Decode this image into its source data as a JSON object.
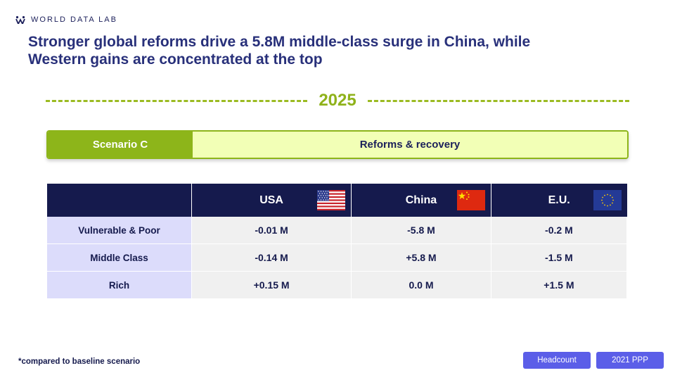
{
  "brand": {
    "name": "WORLD DATA LAB",
    "logo_icon": "wdl-logo-icon"
  },
  "headline": "Stronger global reforms drive a 5.8M middle-class surge in China, while Western gains are concentrated at the top",
  "year": "2025",
  "scenario": {
    "label": "Scenario C",
    "description": "Reforms & recovery"
  },
  "table": {
    "columns": [
      {
        "name": "USA",
        "flag": "usa-flag-icon"
      },
      {
        "name": "China",
        "flag": "china-flag-icon"
      },
      {
        "name": "E.U.",
        "flag": "eu-flag-icon"
      }
    ],
    "rows": [
      {
        "label": "Vulnerable & Poor",
        "values": [
          "-0.01 M",
          "-5.8 M",
          "-0.2 M"
        ]
      },
      {
        "label": "Middle Class",
        "values": [
          "-0.14 M",
          "+5.8 M",
          "-1.5 M"
        ]
      },
      {
        "label": "Rich",
        "values": [
          "+0.15 M",
          "0.0 M",
          "+1.5 M"
        ]
      }
    ]
  },
  "footnote": "*compared to baseline scenario",
  "tags": {
    "headcount": "Headcount",
    "ppp": "2021 PPP"
  },
  "colors": {
    "navy": "#151a4d",
    "green": "#8db51a",
    "light_green": "#f2ffb6",
    "row_label_bg": "#dcdcfb",
    "tag_blue": "#5b5ee8"
  }
}
